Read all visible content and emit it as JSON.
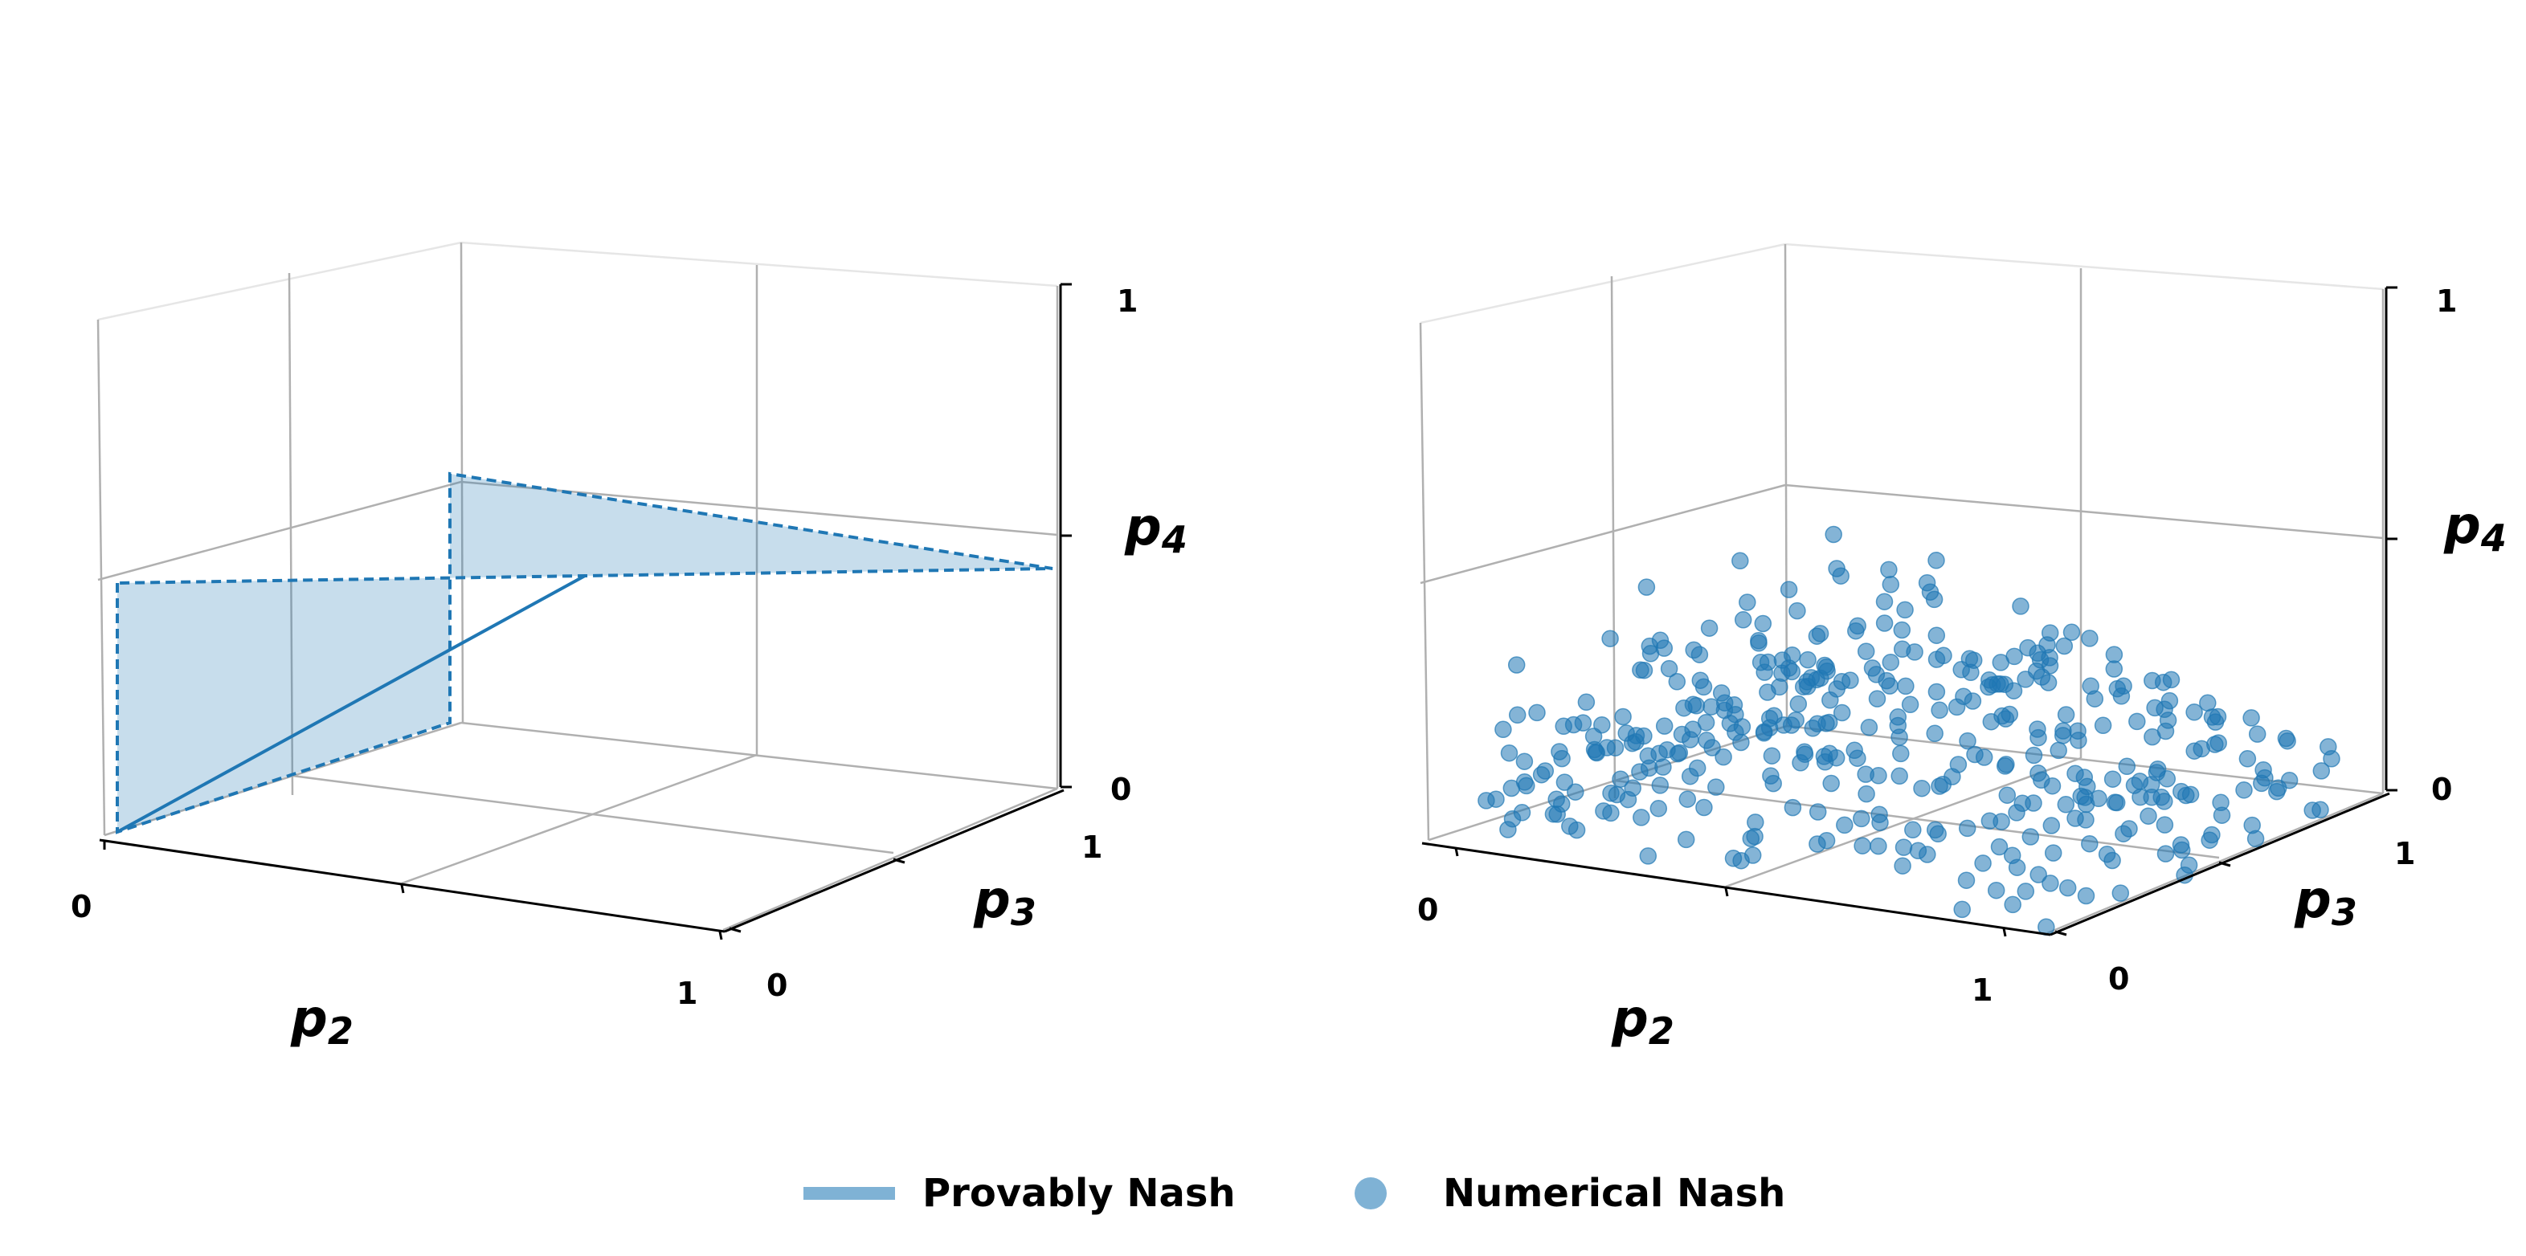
{
  "colors": {
    "series": "#1f77b4",
    "legend_line": "#7fb2d5",
    "grid": "#b0b0b0",
    "pane": "#e6e6e6"
  },
  "chart_data": [
    {
      "type": "3d-surface",
      "view": "3d-perspective",
      "axes": {
        "x": {
          "label": "p",
          "sub": "2",
          "ticks": [
            "0",
            "1"
          ],
          "range": [
            0,
            1
          ]
        },
        "y": {
          "label": "p",
          "sub": "3",
          "ticks": [
            "0",
            "1"
          ],
          "range": [
            0,
            1
          ]
        },
        "z": {
          "label": "p",
          "sub": "4",
          "ticks": [
            "0",
            "1"
          ],
          "range": [
            0,
            1
          ]
        }
      },
      "grid": true,
      "series": [
        {
          "kind": "polygon",
          "style": "dashed outline with translucent fill",
          "vertices": [
            [
              0.0,
              0.0,
              0.5
            ],
            [
              0.0,
              0.0,
              0.0
            ],
            [
              0.0,
              1.0,
              0.0
            ],
            [
              0.0,
              1.0,
              0.5
            ],
            [
              1.0,
              1.0,
              0.5
            ],
            [
              0.5,
              0.5,
              0.5
            ]
          ],
          "solid_edge": [
            [
              0.0,
              0.0,
              0.0
            ],
            [
              0.5,
              0.5,
              0.5
            ]
          ]
        }
      ]
    },
    {
      "type": "scatter3d",
      "view": "3d-perspective",
      "axes": {
        "x": {
          "label": "p",
          "sub": "2",
          "ticks": [
            "0",
            "1"
          ],
          "range": [
            0,
            1
          ]
        },
        "y": {
          "label": "p",
          "sub": "3",
          "ticks": [
            "0",
            "1"
          ],
          "range": [
            0,
            1
          ]
        },
        "z": {
          "label": "p",
          "sub": "4",
          "ticks": [
            "0",
            "1"
          ],
          "range": [
            0,
            1
          ]
        }
      },
      "grid": true,
      "series": [
        {
          "kind": "scatter",
          "note": "approximately 400 points filling a dome-shaped region over the base",
          "points": [
            [
              0.05,
              0.1,
              0.2
            ],
            [
              0.1,
              0.05,
              0.35
            ],
            [
              0.15,
              0.2,
              0.15
            ],
            [
              0.2,
              0.15,
              0.4
            ],
            [
              0.25,
              0.3,
              0.1
            ],
            [
              0.3,
              0.25,
              0.3
            ],
            [
              0.35,
              0.4,
              0.2
            ],
            [
              0.4,
              0.35,
              0.45
            ],
            [
              0.45,
              0.5,
              0.25
            ],
            [
              0.5,
              0.45,
              0.5
            ],
            [
              0.55,
              0.6,
              0.3
            ],
            [
              0.6,
              0.55,
              0.15
            ],
            [
              0.65,
              0.7,
              0.35
            ],
            [
              0.7,
              0.65,
              0.2
            ],
            [
              0.75,
              0.8,
              0.1
            ],
            [
              0.8,
              0.75,
              0.3
            ],
            [
              0.85,
              0.9,
              0.2
            ],
            [
              0.9,
              0.85,
              0.1
            ],
            [
              0.95,
              0.95,
              0.15
            ],
            [
              0.05,
              0.5,
              0.1
            ],
            [
              0.1,
              0.6,
              0.25
            ],
            [
              0.15,
              0.7,
              0.3
            ],
            [
              0.2,
              0.8,
              0.2
            ],
            [
              0.25,
              0.9,
              0.15
            ],
            [
              0.3,
              0.95,
              0.25
            ],
            [
              0.35,
              0.1,
              0.3
            ],
            [
              0.4,
              0.05,
              0.2
            ],
            [
              0.45,
              0.15,
              0.4
            ],
            [
              0.5,
              0.2,
              0.35
            ],
            [
              0.55,
              0.1,
              0.25
            ],
            [
              0.6,
              0.05,
              0.15
            ],
            [
              0.65,
              0.2,
              0.3
            ],
            [
              0.7,
              0.3,
              0.4
            ],
            [
              0.75,
              0.25,
              0.25
            ],
            [
              0.8,
              0.35,
              0.2
            ],
            [
              0.85,
              0.4,
              0.15
            ],
            [
              0.9,
              0.5,
              0.1
            ],
            [
              0.95,
              0.6,
              0.05
            ],
            [
              0.5,
              0.9,
              0.25
            ],
            [
              0.6,
              0.95,
              0.2
            ],
            [
              0.4,
              0.75,
              0.4
            ],
            [
              0.3,
              0.65,
              0.45
            ],
            [
              0.2,
              0.55,
              0.35
            ],
            [
              0.1,
              0.45,
              0.3
            ],
            [
              0.05,
              0.35,
              0.2
            ],
            [
              0.15,
              0.35,
              0.45
            ],
            [
              0.25,
              0.45,
              0.5
            ],
            [
              0.35,
              0.55,
              0.55
            ],
            [
              0.45,
              0.65,
              0.45
            ],
            [
              0.55,
              0.75,
              0.4
            ],
            [
              0.65,
              0.85,
              0.3
            ],
            [
              0.75,
              0.95,
              0.2
            ],
            [
              0.85,
              0.65,
              0.25
            ],
            [
              0.9,
              0.7,
              0.2
            ],
            [
              0.95,
              0.8,
              0.1
            ],
            [
              0.5,
              0.3,
              0.55
            ],
            [
              0.6,
              0.4,
              0.5
            ],
            [
              0.7,
              0.5,
              0.4
            ],
            [
              0.8,
              0.6,
              0.3
            ],
            [
              0.4,
              0.2,
              0.5
            ]
          ]
        }
      ]
    }
  ],
  "legend": [
    {
      "label": "Provably Nash",
      "marker": "line"
    },
    {
      "label": "Numerical Nash",
      "marker": "circle"
    }
  ]
}
